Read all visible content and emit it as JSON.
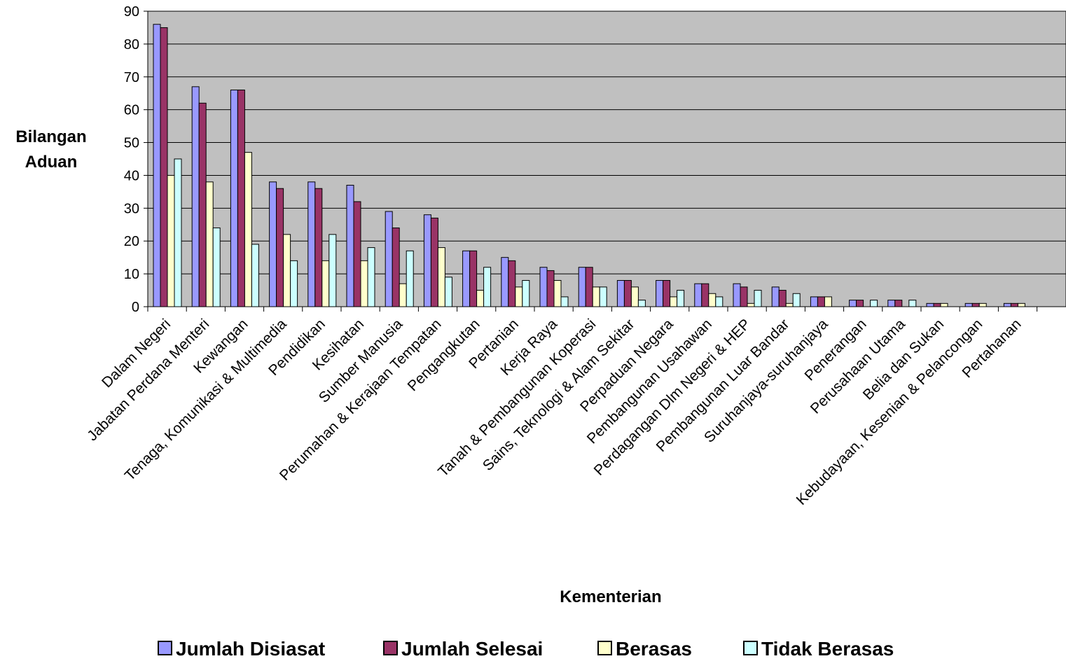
{
  "chart_data": {
    "type": "bar",
    "title": "",
    "xlabel": "Kementerian",
    "ylabel": [
      "Bilangan",
      "Aduan"
    ],
    "ylim": [
      0,
      90
    ],
    "yticks": [
      0,
      10,
      20,
      30,
      40,
      50,
      60,
      70,
      80,
      90
    ],
    "grid": true,
    "legend_position": "bottom",
    "categories": [
      "Dalam Negeri",
      "Jabatan Perdana Menteri",
      "Kewangan",
      "Tenaga, Komunikasi & Multimedia",
      "Pendidikan",
      "Kesihatan",
      "Sumber Manusia",
      "Perumahan & Kerajaan Tempatan",
      "Pengangkutan",
      "Pertanian",
      "Kerja Raya",
      "Tanah & Pembangunan Koperasi",
      "Sains, Teknologi & Alam Sekitar",
      "Perpaduan Negara",
      "Pembangunan Usahawan",
      "Perdagangan Dlm Negeri & HEP",
      "Pembangunan Luar Bandar",
      "Suruhanjaya-suruhanjaya",
      "Penerangan",
      "Perusahaan Utama",
      "Belia dan Sukan",
      "Kebudayaan, Kesenian & Pelancongan",
      "Pertahanan"
    ],
    "series": [
      {
        "name": "Jumlah Disiasat",
        "color": "#9999ff",
        "values": [
          86,
          67,
          66,
          38,
          38,
          37,
          29,
          28,
          17,
          15,
          12,
          12,
          8,
          8,
          7,
          7,
          6,
          3,
          2,
          2,
          1,
          1,
          1
        ]
      },
      {
        "name": "Jumlah Selesai",
        "color": "#993366",
        "values": [
          85,
          62,
          66,
          36,
          36,
          32,
          24,
          27,
          17,
          14,
          11,
          12,
          8,
          8,
          7,
          6,
          5,
          3,
          2,
          2,
          1,
          1,
          1
        ]
      },
      {
        "name": "Berasas",
        "color": "#ffffcc",
        "values": [
          40,
          38,
          47,
          22,
          14,
          14,
          7,
          18,
          5,
          6,
          8,
          6,
          6,
          3,
          4,
          1,
          1,
          3,
          0,
          0,
          1,
          1,
          1
        ]
      },
      {
        "name": "Tidak Berasas",
        "color": "#ccffff",
        "values": [
          45,
          24,
          19,
          14,
          22,
          18,
          17,
          9,
          12,
          8,
          3,
          6,
          2,
          5,
          3,
          5,
          4,
          0,
          2,
          2,
          0,
          0,
          0
        ]
      }
    ],
    "plot_background": "#c0c0c0"
  }
}
